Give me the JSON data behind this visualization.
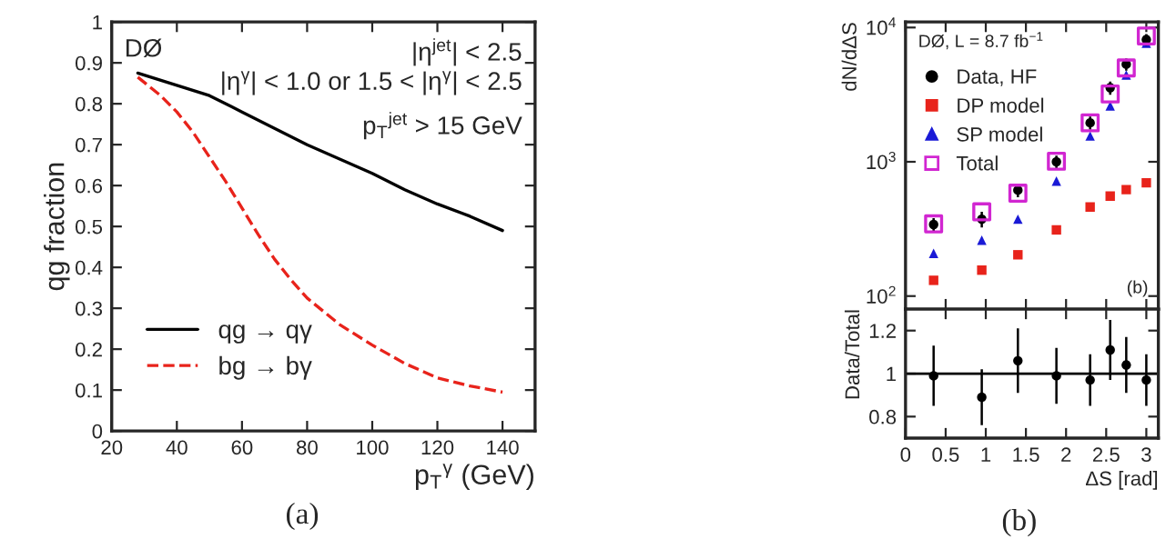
{
  "chart_data": [
    {
      "type": "line",
      "ylabel": "qg fraction",
      "xlabel": "p$_{T}$$^{γ}$ (GeV)",
      "xlim": [
        20,
        150
      ],
      "ylim": [
        0,
        1
      ],
      "xticks": [
        20,
        40,
        60,
        80,
        100,
        120,
        140
      ],
      "yticks": [
        0,
        0.1,
        0.2,
        0.3,
        0.4,
        0.5,
        0.6,
        0.7,
        0.8,
        0.9,
        1
      ],
      "grid": false,
      "legend": "bottom left",
      "annotations": [
        "DØ",
        "|η$^{jet}$| < 2.5",
        "|η$^{γ}$| < 1.0 or 1.5 < |η$^{γ}$| < 2.5",
        "p$_{T}$$^{jet}$ > 15 GeV",
        "(a)"
      ],
      "series": [
        {
          "name": "qg → qγ",
          "color": "#000000",
          "line_style": "solid",
          "x": [
            28,
            40,
            50,
            60,
            70,
            80,
            90,
            100,
            110,
            120,
            130,
            140
          ],
          "values": [
            0.875,
            0.845,
            0.82,
            0.78,
            0.74,
            0.7,
            0.665,
            0.63,
            0.59,
            0.555,
            0.525,
            0.49
          ]
        },
        {
          "name": "bg → bγ",
          "color": "#e8231b",
          "line_style": "dashed",
          "x": [
            28,
            35,
            40,
            45,
            50,
            55,
            60,
            65,
            70,
            75,
            80,
            90,
            100,
            110,
            120,
            130,
            140
          ],
          "values": [
            0.865,
            0.82,
            0.78,
            0.73,
            0.67,
            0.61,
            0.545,
            0.48,
            0.42,
            0.37,
            0.325,
            0.26,
            0.21,
            0.165,
            0.13,
            0.11,
            0.095
          ]
        }
      ]
    },
    {
      "type": "scatter",
      "ylabel": "dN/dΔS",
      "log": "y",
      "xlim": [
        0,
        3.15
      ],
      "ylim": [
        80,
        11000
      ],
      "xticks": [
        {
          "value": 0,
          "label": null
        },
        {
          "value": 0.5,
          "label": null
        },
        {
          "value": 1,
          "label": null
        },
        {
          "value": 1.5,
          "label": null
        },
        {
          "value": 2,
          "label": null
        },
        {
          "value": 2.5,
          "label": null
        },
        {
          "value": 3,
          "label": null
        }
      ],
      "yticks": [
        {
          "value": 100,
          "label": "10$^{2}$"
        },
        {
          "value": 1000,
          "label": "10$^{3}$"
        },
        {
          "value": 10000,
          "label": "10$^{4}$"
        }
      ],
      "tick_labels": "y",
      "grid": false,
      "legend": "top left",
      "annotations": [
        "DØ, L = 8.7 fb$^{−1}$",
        "(b)"
      ],
      "x": [
        0.35,
        0.95,
        1.4,
        1.88,
        2.3,
        2.55,
        2.75,
        3.0
      ],
      "series": [
        {
          "name": "Data, HF",
          "color": "#000000",
          "marker": "circle",
          "values": [
            341,
            374,
            615,
            1000,
            1950,
            3560,
            5330,
            8130
          ],
          "errors": [
            40,
            50,
            70,
            110,
            220,
            400,
            550,
            800
          ]
        },
        {
          "name": "DP model",
          "color": "#e8231b",
          "marker": "square",
          "values": [
            131,
            156,
            203,
            311,
            461,
            555,
            621,
            697
          ]
        },
        {
          "name": "SP model",
          "color": "#1a1ad6",
          "marker": "triangle",
          "values": [
            208,
            261,
            374,
            718,
            1556,
            2610,
            4430,
            7640
          ]
        },
        {
          "name": "Total",
          "color": "#d126d1",
          "marker": "square",
          "values": [
            345,
            424,
            584,
            1010,
            1950,
            3200,
            5000,
            8650
          ]
        }
      ]
    },
    {
      "type": "scatter",
      "ylabel": "Data/Total",
      "xlabel": "ΔS [rad]",
      "xlim": [
        0,
        3.15
      ],
      "ylim": [
        0.7,
        1.3
      ],
      "xticks": [
        0,
        0.5,
        1,
        1.5,
        2,
        2.5,
        3
      ],
      "yticks": [
        0.8,
        1,
        1.2
      ],
      "grid": false,
      "ref_lines": [
        {
          "axis": "y",
          "value": 1,
          "color": "#000000"
        }
      ],
      "annotations": [
        "(b)"
      ],
      "x": [
        0.35,
        0.95,
        1.4,
        1.88,
        2.3,
        2.55,
        2.75,
        3.0
      ],
      "series": [
        {
          "color": "#000000",
          "marker": "circle",
          "values": [
            0.99,
            0.89,
            1.06,
            0.99,
            0.97,
            1.11,
            1.04,
            0.97
          ],
          "errors": [
            0.14,
            0.13,
            0.15,
            0.13,
            0.12,
            0.14,
            0.13,
            0.12
          ]
        }
      ]
    }
  ]
}
